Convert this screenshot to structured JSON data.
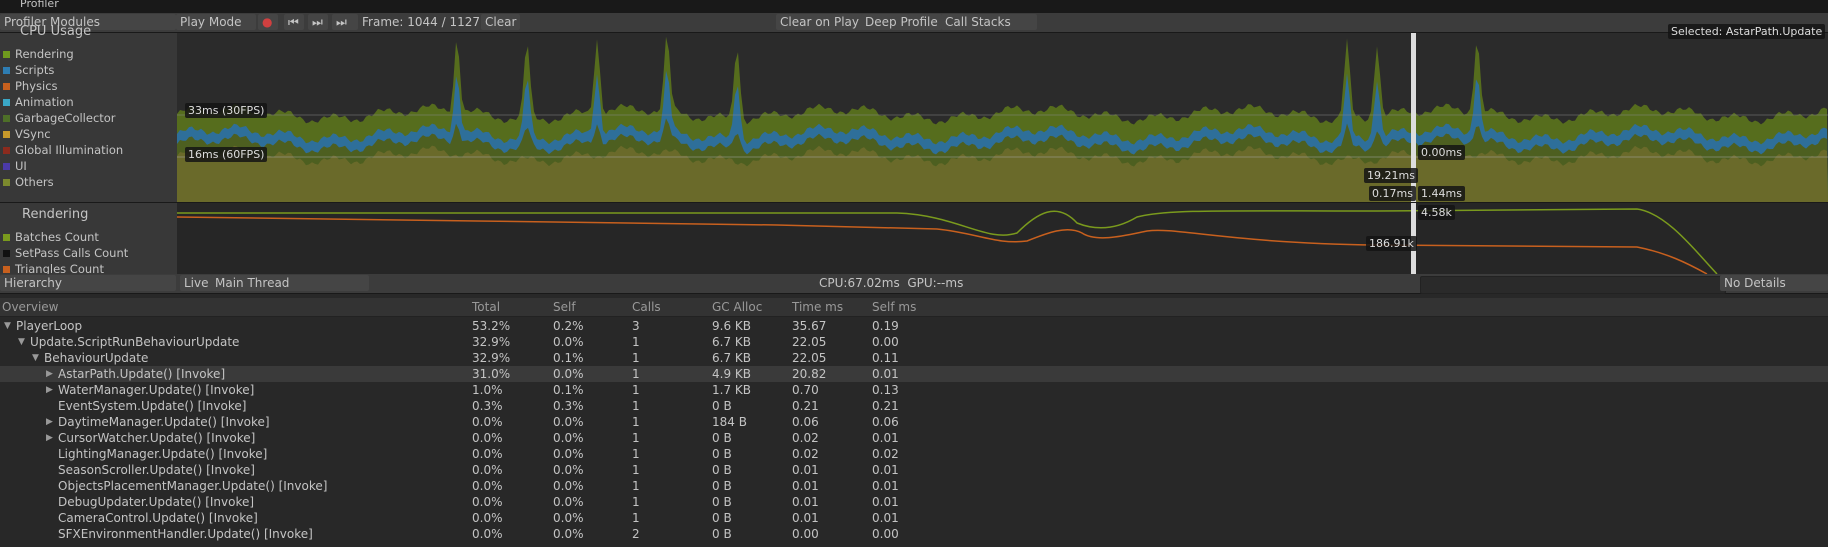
{
  "window": {
    "title": "Profiler"
  },
  "toolbar": {
    "modules": "Profiler Modules",
    "play_mode": "Play Mode",
    "frame": "Frame: 1044 / 1127",
    "clear": "Clear",
    "clear_on_play": "Clear on Play",
    "deep_profile": "Deep Profile",
    "call_stacks": "Call Stacks"
  },
  "cpu_module": {
    "title": "CPU Usage",
    "legend": [
      "Rendering",
      "Scripts",
      "Physics",
      "Animation",
      "GarbageCollector",
      "VSync",
      "Global Illumination",
      "UI",
      "Others"
    ],
    "guide_30fps": "33ms (30FPS)",
    "guide_60fps": "16ms (60FPS)",
    "selected": "Selected: AstarPath.Update",
    "markers": [
      "0.00ms",
      "19.21ms",
      "0.17ms",
      "1.44ms"
    ]
  },
  "rendering_module": {
    "title": "Rendering",
    "legend": [
      "Batches Count",
      "SetPass Calls Count",
      "Triangles Count"
    ],
    "markers": [
      "4.58k",
      "186.91k"
    ]
  },
  "details_toolbar": {
    "view": "Hierarchy",
    "live": "Live",
    "thread": "Main Thread",
    "timing": "CPU:67.02ms  GPU:--ms",
    "details": "No Details"
  },
  "table": {
    "columns": [
      "Overview",
      "Total",
      "Self",
      "Calls",
      "GC Alloc",
      "Time ms",
      "Self ms"
    ],
    "rows": [
      [
        "PlayerLoop",
        "53.2%",
        "0.2%",
        "3",
        "9.6 KB",
        "35.67",
        "0.19"
      ],
      [
        "Update.ScriptRunBehaviourUpdate",
        "32.9%",
        "0.0%",
        "1",
        "6.7 KB",
        "22.05",
        "0.00"
      ],
      [
        "BehaviourUpdate",
        "32.9%",
        "0.1%",
        "1",
        "6.7 KB",
        "22.05",
        "0.11"
      ],
      [
        "AstarPath.Update() [Invoke]",
        "31.0%",
        "0.0%",
        "1",
        "4.9 KB",
        "20.82",
        "0.01"
      ],
      [
        "WaterManager.Update() [Invoke]",
        "1.0%",
        "0.1%",
        "1",
        "1.7 KB",
        "0.70",
        "0.13"
      ],
      [
        "EventSystem.Update() [Invoke]",
        "0.3%",
        "0.3%",
        "1",
        "0 B",
        "0.21",
        "0.21"
      ],
      [
        "DaytimeManager.Update() [Invoke]",
        "0.0%",
        "0.0%",
        "1",
        "184 B",
        "0.06",
        "0.06"
      ],
      [
        "CursorWatcher.Update() [Invoke]",
        "0.0%",
        "0.0%",
        "1",
        "0 B",
        "0.02",
        "0.01"
      ],
      [
        "LightingManager.Update() [Invoke]",
        "0.0%",
        "0.0%",
        "1",
        "0 B",
        "0.02",
        "0.02"
      ],
      [
        "SeasonScroller.Update() [Invoke]",
        "0.0%",
        "0.0%",
        "1",
        "0 B",
        "0.01",
        "0.01"
      ],
      [
        "ObjectsPlacementManager.Update() [Invoke]",
        "0.0%",
        "0.0%",
        "1",
        "0 B",
        "0.01",
        "0.01"
      ],
      [
        "DebugUpdater.Update() [Invoke]",
        "0.0%",
        "0.0%",
        "1",
        "0 B",
        "0.01",
        "0.01"
      ],
      [
        "CameraControl.Update() [Invoke]",
        "0.0%",
        "0.0%",
        "1",
        "0 B",
        "0.01",
        "0.01"
      ],
      [
        "SFXEnvironmentHandler.Update() [Invoke]",
        "0.0%",
        "0.0%",
        "2",
        "0 B",
        "0.00",
        "0.00"
      ]
    ]
  }
}
